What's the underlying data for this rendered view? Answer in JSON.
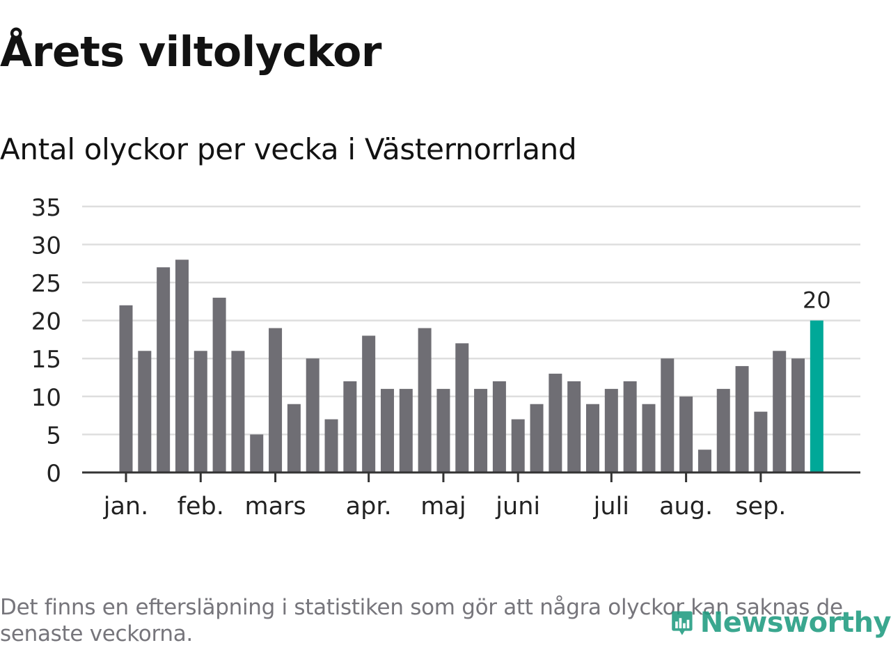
{
  "page": {
    "title": "Årets viltolyckor",
    "subtitle": "Antal olyckor per vecka i Västernorrland",
    "footnote": "Det finns en eftersläpning i statistiken som gör att några olyckor kan saknas de senaste veckorna.",
    "logo_text": "Newsworthy"
  },
  "colors": {
    "bar": "#6f6e74",
    "highlight": "#00a898",
    "grid": "#dedede",
    "axis": "#333333",
    "text": "#222222",
    "logo": "#1f9c80"
  },
  "chart_data": {
    "type": "bar",
    "title": "Antal olyckor per vecka i Västernorrland",
    "xlabel": "",
    "ylabel": "",
    "ylim": [
      0,
      35
    ],
    "yticks": [
      0,
      5,
      10,
      15,
      20,
      25,
      30,
      35
    ],
    "grid": true,
    "values": [
      22,
      16,
      27,
      28,
      16,
      23,
      16,
      5,
      19,
      9,
      15,
      7,
      12,
      18,
      11,
      11,
      19,
      11,
      17,
      11,
      12,
      7,
      9,
      13,
      12,
      9,
      11,
      12,
      9,
      15,
      10,
      3,
      11,
      14,
      8,
      16,
      15,
      20
    ],
    "highlight_index": 37,
    "highlight_label": "20",
    "month_ticks": [
      {
        "label": "jan.",
        "bar_index": 0
      },
      {
        "label": "feb.",
        "bar_index": 4
      },
      {
        "label": "mars",
        "bar_index": 8
      },
      {
        "label": "apr.",
        "bar_index": 13
      },
      {
        "label": "maj",
        "bar_index": 17
      },
      {
        "label": "juni",
        "bar_index": 21
      },
      {
        "label": "juli",
        "bar_index": 26
      },
      {
        "label": "aug.",
        "bar_index": 30
      },
      {
        "label": "sep.",
        "bar_index": 34
      }
    ]
  }
}
